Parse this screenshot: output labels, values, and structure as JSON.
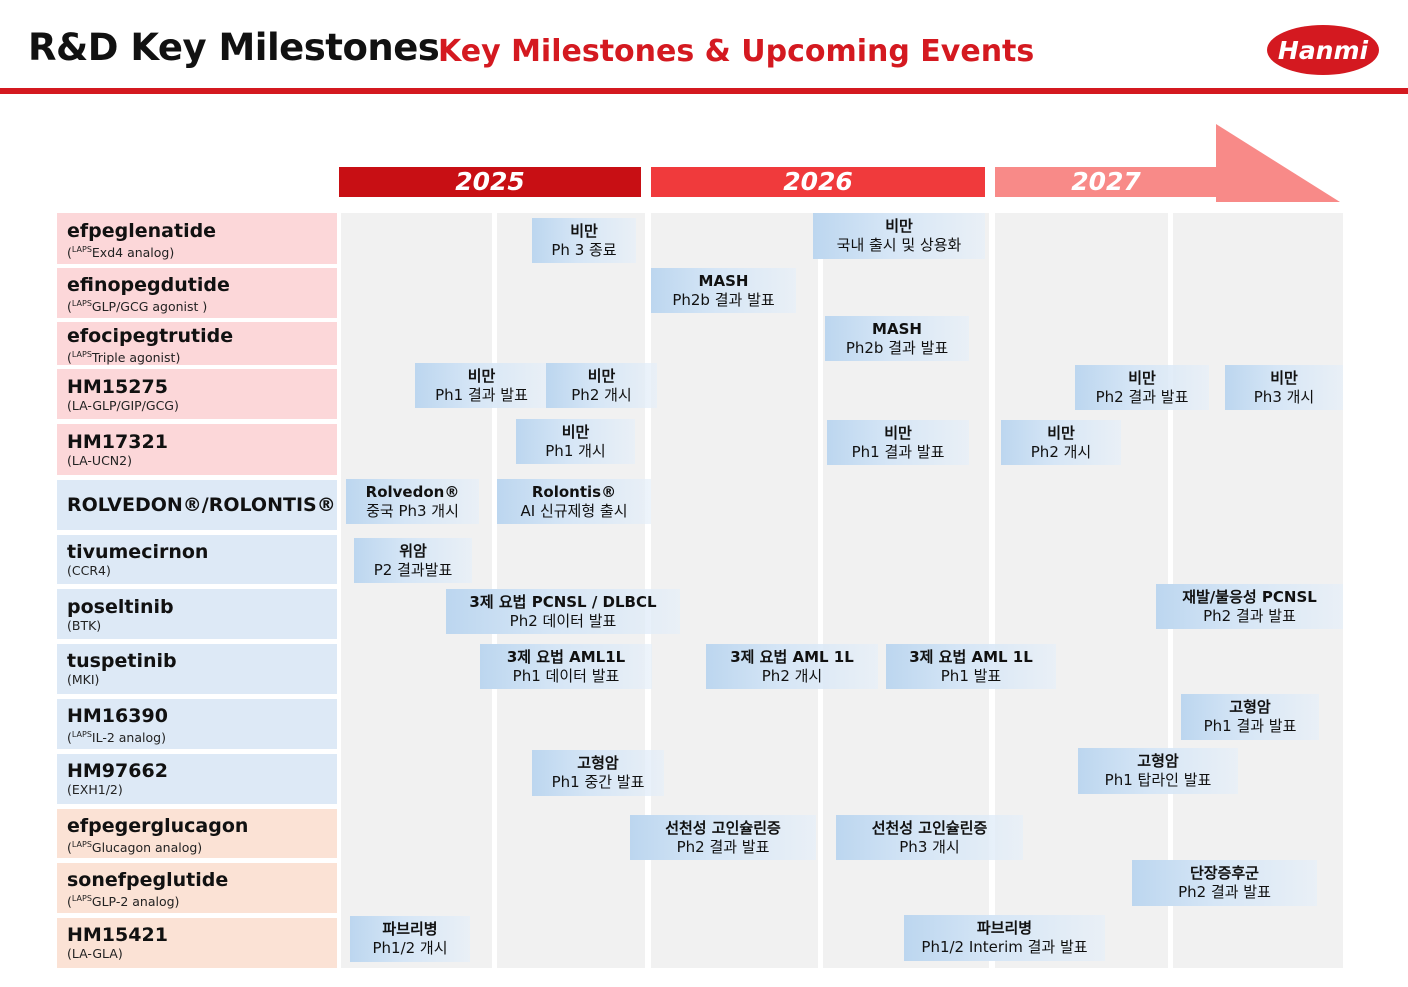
{
  "header": {
    "title": "R&D Key Milestones",
    "subtitle": "Key Milestones & Upcoming Events",
    "logo_text": "Hanmi",
    "brand_color": "#d41920"
  },
  "years": [
    {
      "label": "2025",
      "color": "#c80f14"
    },
    {
      "label": "2026",
      "color": "#f03a3c"
    },
    {
      "label": "2027",
      "color": "#f88a88"
    }
  ],
  "rows": [
    {
      "name": "efpeglenatide",
      "sup": "LAPS",
      "desc": "Exd4 analog)",
      "pre": "(",
      "color": "pink"
    },
    {
      "name": "efinopegdutide",
      "sup": "LAPS",
      "desc": "GLP/GCG agonist )",
      "pre": "(",
      "color": "pink"
    },
    {
      "name": "efocipegtrutide",
      "sup": "LAPS",
      "desc": "Triple agonist)",
      "pre": "(",
      "color": "pink"
    },
    {
      "name": "HM15275",
      "sup": "",
      "desc": "(LA-GLP/GIP/GCG)",
      "pre": "",
      "color": "pink"
    },
    {
      "name": "HM17321",
      "sup": "",
      "desc": "(LA-UCN2)",
      "pre": "",
      "color": "pink"
    },
    {
      "name": "ROLVEDON®/ROLONTIS®",
      "sup": "",
      "desc": "",
      "pre": "",
      "color": "blue"
    },
    {
      "name": "tivumecirnon",
      "sup": "",
      "desc": "(CCR4)",
      "pre": "",
      "color": "blue"
    },
    {
      "name": "poseltinib",
      "sup": "",
      "desc": "(BTK)",
      "pre": "",
      "color": "blue"
    },
    {
      "name": "tuspetinib",
      "sup": "",
      "desc": "(MKI)",
      "pre": "",
      "color": "blue"
    },
    {
      "name": "HM16390",
      "sup": "LAPS",
      "desc": "IL-2 analog)",
      "pre": "(",
      "color": "blue"
    },
    {
      "name": "HM97662",
      "sup": "",
      "desc": "(EXH1/2)",
      "pre": "",
      "color": "blue"
    },
    {
      "name": "efpegerglucagon",
      "sup": "LAPS",
      "desc": "Glucagon analog)",
      "pre": "(",
      "color": "peach"
    },
    {
      "name": "sonefpeglutide",
      "sup": "LAPS",
      "desc": "GLP-2 analog)",
      "pre": "(",
      "color": "peach"
    },
    {
      "name": "HM15421",
      "sup": "",
      "desc": "(LA-GLA)",
      "pre": "",
      "color": "peach"
    }
  ],
  "events": [
    {
      "l1": "비만",
      "l2": "Ph 3 종료"
    },
    {
      "l1": "비만",
      "l2": "국내 출시 및 상용화"
    },
    {
      "l1": "MASH",
      "l2": "Ph2b 결과 발표"
    },
    {
      "l1": "MASH",
      "l2": "Ph2b 결과 발표"
    },
    {
      "l1": "비만",
      "l2": "Ph1 결과 발표"
    },
    {
      "l1": "비만",
      "l2": "Ph2 개시"
    },
    {
      "l1": "비만",
      "l2": "Ph2 결과 발표"
    },
    {
      "l1": "비만",
      "l2": "Ph3 개시"
    },
    {
      "l1": "비만",
      "l2": "Ph1 개시"
    },
    {
      "l1": "비만",
      "l2": "Ph1 결과 발표"
    },
    {
      "l1": "비만",
      "l2": "Ph2 개시"
    },
    {
      "l1": "Rolvedon®",
      "l2": "중국 Ph3 개시"
    },
    {
      "l1": "Rolontis®",
      "l2": "AI 신규제형 출시"
    },
    {
      "l1": "위암",
      "l2": "P2 결과발표"
    },
    {
      "l1": "3제 요법 PCNSL / DLBCL",
      "l2": "Ph2 데이터 발표"
    },
    {
      "l1": "재발/불응성 PCNSL",
      "l2": "Ph2 결과 발표"
    },
    {
      "l1": "3제 요법 AML1L",
      "l2": "Ph1 데이터 발표"
    },
    {
      "l1": "3제 요법 AML 1L",
      "l2": "Ph2 개시"
    },
    {
      "l1": "3제 요법 AML 1L",
      "l2": "Ph1 발표"
    },
    {
      "l1": "고형암",
      "l2": "Ph1 결과 발표"
    },
    {
      "l1": "고형암",
      "l2": "Ph1 중간 발표"
    },
    {
      "l1": "고형암",
      "l2": "Ph1 탑라인 발표"
    },
    {
      "l1": "선천성 고인슐린증",
      "l2": "Ph2 결과 발표"
    },
    {
      "l1": "선천성 고인슐린증",
      "l2": "Ph3 개시"
    },
    {
      "l1": "단장증후군",
      "l2": "Ph2 결과 발표"
    },
    {
      "l1": "파브리병",
      "l2": "Ph1/2 개시"
    },
    {
      "l1": "파브리병",
      "l2": "Ph1/2 Interim 결과 발표"
    }
  ]
}
